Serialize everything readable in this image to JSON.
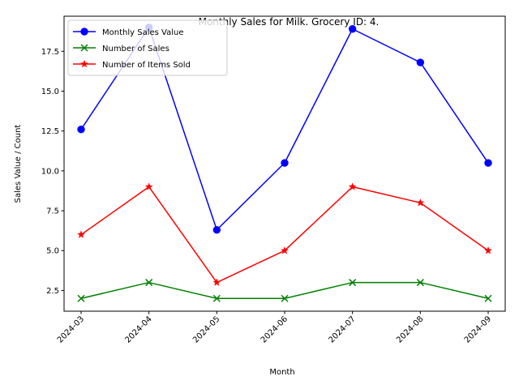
{
  "chart_data": {
    "type": "line",
    "title": "Monthly Sales for Milk. Grocery ID: 4.",
    "xlabel": "Month",
    "ylabel": "Sales Value / Count",
    "categories": [
      "2024-03",
      "2024-04",
      "2024-05",
      "2024-06",
      "2024-07",
      "2024-08",
      "2024-09"
    ],
    "ylim": [
      1.2,
      19.7
    ],
    "yticks": [
      2.5,
      5.0,
      7.5,
      10.0,
      12.5,
      15.0,
      17.5
    ],
    "ytick_labels": [
      "2.5",
      "5.0",
      "7.5",
      "10.0",
      "12.5",
      "15.0",
      "17.5"
    ],
    "grid": false,
    "legend_position": "top-left",
    "series": [
      {
        "name": "Monthly Sales Value",
        "color": "#0000ff",
        "marker": "circle",
        "values": [
          12.6,
          19.0,
          6.3,
          10.5,
          18.9,
          16.8,
          10.5
        ]
      },
      {
        "name": "Number of Sales",
        "color": "#008000",
        "marker": "x",
        "values": [
          2,
          3,
          2,
          2,
          3,
          3,
          2
        ]
      },
      {
        "name": "Number of Items Sold",
        "color": "#ff0000",
        "marker": "star",
        "values": [
          6,
          9,
          3,
          5,
          9,
          8,
          5
        ]
      }
    ]
  }
}
